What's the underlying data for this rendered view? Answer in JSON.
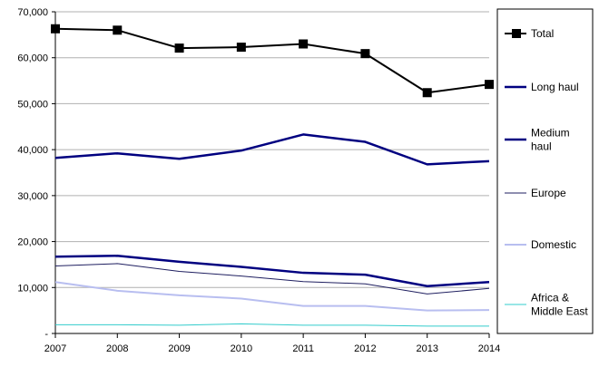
{
  "chart_data": {
    "type": "line",
    "title": "",
    "xlabel": "",
    "ylabel": "",
    "x": [
      "2007",
      "2008",
      "2009",
      "2010",
      "2011",
      "2012",
      "2013",
      "2014"
    ],
    "ylim": [
      0,
      70000
    ],
    "y_ticks": [
      "-",
      "10,000",
      "20,000",
      "30,000",
      "40,000",
      "50,000",
      "60,000",
      "70,000"
    ],
    "grid": true,
    "legend_position": "right",
    "series": [
      {
        "name": "Total",
        "values": [
          66300,
          66000,
          62100,
          62300,
          63000,
          60900,
          52400,
          54200
        ],
        "color": "#000000",
        "marker": "square"
      },
      {
        "name": "Long haul",
        "values": [
          38200,
          39200,
          38000,
          39800,
          43300,
          41700,
          36800,
          37500
        ],
        "color": "#000080",
        "marker": "none"
      },
      {
        "name": "Medium haul",
        "values": [
          16700,
          16900,
          15600,
          14500,
          13200,
          12800,
          10300,
          11200
        ],
        "color": "#000080",
        "marker": "none"
      },
      {
        "name": "Europe",
        "values": [
          14700,
          15200,
          13500,
          12500,
          11300,
          10800,
          8600,
          9800
        ],
        "color": "#1f1f60",
        "marker": "none"
      },
      {
        "name": "Domestic",
        "values": [
          11200,
          9300,
          8300,
          7600,
          6000,
          6000,
          5000,
          5100
        ],
        "color": "#b8bef0",
        "marker": "none"
      },
      {
        "name": "Africa & Middle East",
        "values": [
          1900,
          1900,
          1800,
          2100,
          1800,
          1800,
          1600,
          1600
        ],
        "color": "#33cccc",
        "marker": "none"
      }
    ]
  },
  "legend": {
    "items": [
      {
        "lines": [
          "Total"
        ]
      },
      {
        "lines": [
          "Long haul"
        ]
      },
      {
        "lines": [
          "Medium",
          "haul"
        ]
      },
      {
        "lines": [
          "Europe"
        ]
      },
      {
        "lines": [
          "Domestic"
        ]
      },
      {
        "lines": [
          "Africa &",
          "Middle East"
        ]
      }
    ]
  }
}
